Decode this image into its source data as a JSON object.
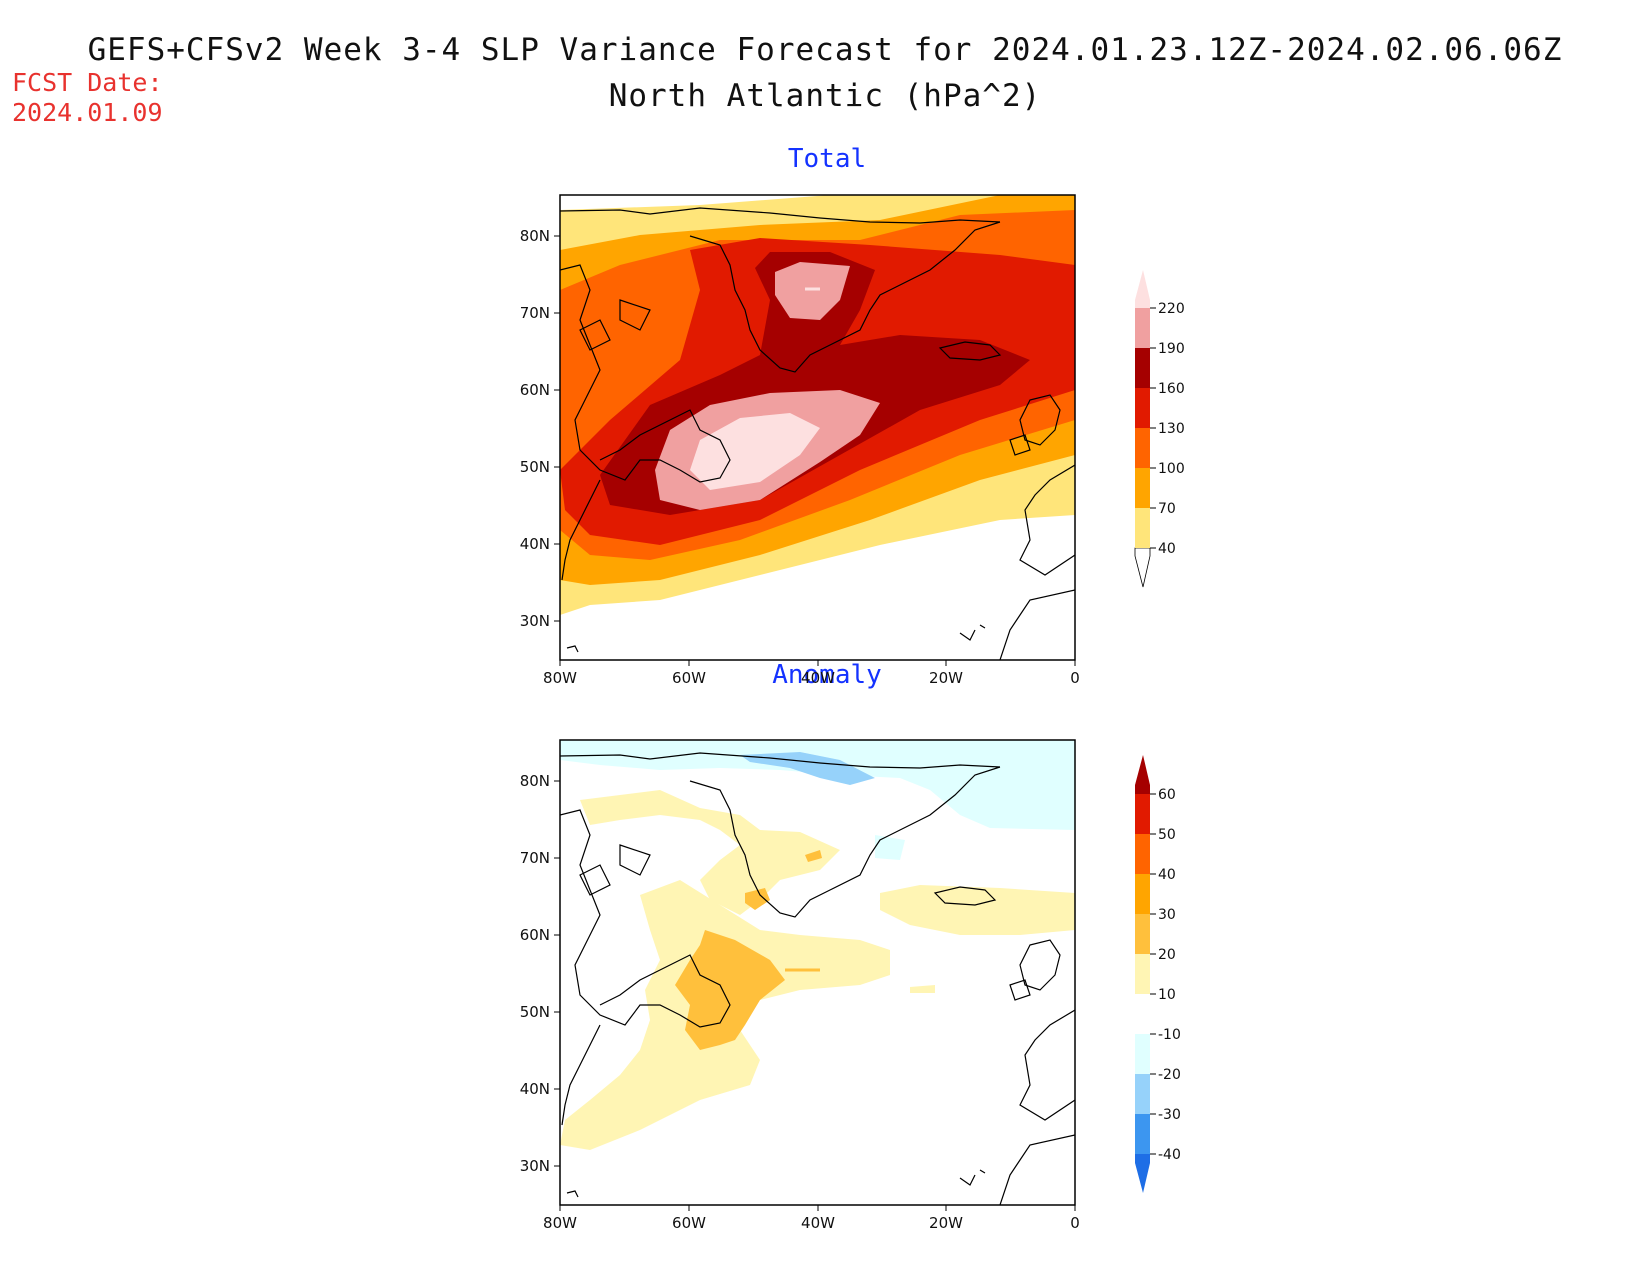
{
  "header": {
    "title": "GEFS+CFSv2 Week 3-4 SLP Variance Forecast for 2024.01.23.12Z-2024.02.06.06Z",
    "subtitle": "North Atlantic (hPa^2)",
    "fcst_label": "FCST Date:",
    "fcst_date": "2024.01.09"
  },
  "panels": [
    {
      "title": "Total",
      "x_ticks": [
        "80W",
        "60W",
        "40W",
        "20W",
        "0"
      ],
      "y_ticks": [
        "80N",
        "70N",
        "60N",
        "50N",
        "40N",
        "30N"
      ],
      "colorbar": {
        "levels": [
          "40",
          "70",
          "100",
          "130",
          "160",
          "190",
          "220"
        ],
        "colors": [
          "#ffe57a",
          "#ffa500",
          "#ff6400",
          "#e11a00",
          "#a50000",
          "#f0a0a0",
          "#fde0e0"
        ]
      }
    },
    {
      "title": "Anomaly",
      "x_ticks": [
        "80W",
        "60W",
        "40W",
        "20W",
        "0"
      ],
      "y_ticks": [
        "80N",
        "70N",
        "60N",
        "50N",
        "40N",
        "30N"
      ],
      "colorbar": {
        "levels": [
          "60",
          "50",
          "40",
          "30",
          "20",
          "10",
          "-10",
          "-20",
          "-30",
          "-40"
        ],
        "colors": [
          "#a50000",
          "#e11a00",
          "#ff6400",
          "#ffa500",
          "#ffc03c",
          "#fff5b4",
          "#ffffff",
          "#e0ffff",
          "#96d2fa",
          "#3c96f0",
          "#1e6ee6"
        ]
      }
    }
  ]
}
